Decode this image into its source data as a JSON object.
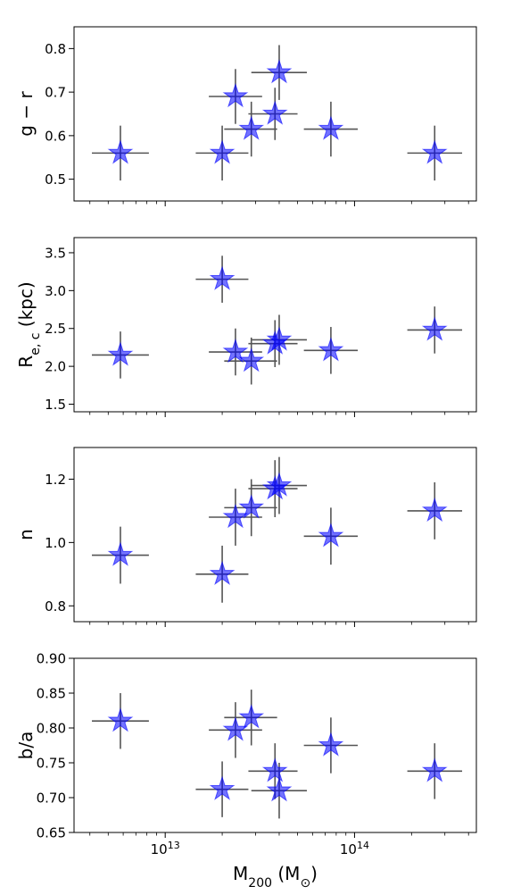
{
  "chart_data": {
    "type": "scatter",
    "marker": "star",
    "marker_color": "#0000ff",
    "errorbar_color": "#555555",
    "xlabel": "M200 (M⊙)",
    "xscale": "log",
    "xlim": [
      3300000000000.0,
      440000000000000.0
    ],
    "x_tick_labels": [
      {
        "value": 10000000000000.0,
        "base": "10",
        "exp": "13"
      },
      {
        "value": 100000000000000.0,
        "base": "10",
        "exp": "14"
      }
    ],
    "points": [
      {
        "x": 5800000000000.0,
        "xlo": 4100000000000.0,
        "xhi": 8200000000000.0
      },
      {
        "x": 20000000000000.0,
        "xlo": 14500000000000.0,
        "xhi": 27500000000000.0
      },
      {
        "x": 23500000000000.0,
        "xlo": 17000000000000.0,
        "xhi": 32500000000000.0
      },
      {
        "x": 28500000000000.0,
        "xlo": 20500000000000.0,
        "xhi": 39000000000000.0
      },
      {
        "x": 38000000000000.0,
        "xlo": 27500000000000.0,
        "xhi": 50000000000000.0
      },
      {
        "x": 40000000000000.0,
        "xlo": 28500000000000.0,
        "xhi": 56000000000000.0
      },
      {
        "x": 75000000000000.0,
        "xlo": 54000000000000.0,
        "xhi": 104000000000000.0
      },
      {
        "x": 265000000000000.0,
        "xlo": 190000000000000.0,
        "xhi": 370000000000000.0
      }
    ],
    "panels": [
      {
        "ylabel": "g − r",
        "ylim": [
          0.45,
          0.85
        ],
        "yticks": [
          0.5,
          0.6,
          0.7,
          0.8
        ],
        "ytick_labels": [
          "0.5",
          "0.6",
          "0.7",
          "0.8"
        ],
        "y": [
          0.56,
          0.56,
          0.69,
          0.615,
          0.65,
          0.745,
          0.615,
          0.56
        ],
        "yerr": [
          0.063,
          0.063,
          0.063,
          0.063,
          0.06,
          0.063,
          0.063,
          0.063
        ]
      },
      {
        "ylabel": "Re, c (kpc)",
        "ylim": [
          1.4,
          3.7
        ],
        "yticks": [
          1.5,
          2.0,
          2.5,
          3.0,
          3.5
        ],
        "ytick_labels": [
          "1.5",
          "2.0",
          "2.5",
          "3.0",
          "3.5"
        ],
        "y": [
          2.15,
          3.15,
          2.19,
          2.07,
          2.3,
          2.35,
          2.21,
          2.48
        ],
        "yerr": [
          0.31,
          0.31,
          0.31,
          0.31,
          0.31,
          0.33,
          0.31,
          0.31
        ]
      },
      {
        "ylabel": "n",
        "ylim": [
          0.75,
          1.3
        ],
        "yticks": [
          0.8,
          1.0,
          1.2
        ],
        "ytick_labels": [
          "0.8",
          "1.0",
          "1.2"
        ],
        "y": [
          0.96,
          0.9,
          1.08,
          1.11,
          1.17,
          1.18,
          1.02,
          1.1
        ],
        "yerr": [
          0.09,
          0.09,
          0.09,
          0.09,
          0.09,
          0.09,
          0.09,
          0.09
        ]
      },
      {
        "ylabel": "b/a",
        "ylim": [
          0.65,
          0.9
        ],
        "yticks": [
          0.65,
          0.7,
          0.75,
          0.8,
          0.85,
          0.9
        ],
        "ytick_labels": [
          "0.65",
          "0.70",
          "0.75",
          "0.80",
          "0.85",
          "0.90"
        ],
        "y": [
          0.81,
          0.712,
          0.797,
          0.815,
          0.738,
          0.71,
          0.775,
          0.738
        ],
        "yerr": [
          0.04,
          0.04,
          0.04,
          0.04,
          0.04,
          0.04,
          0.04,
          0.04
        ]
      }
    ]
  }
}
